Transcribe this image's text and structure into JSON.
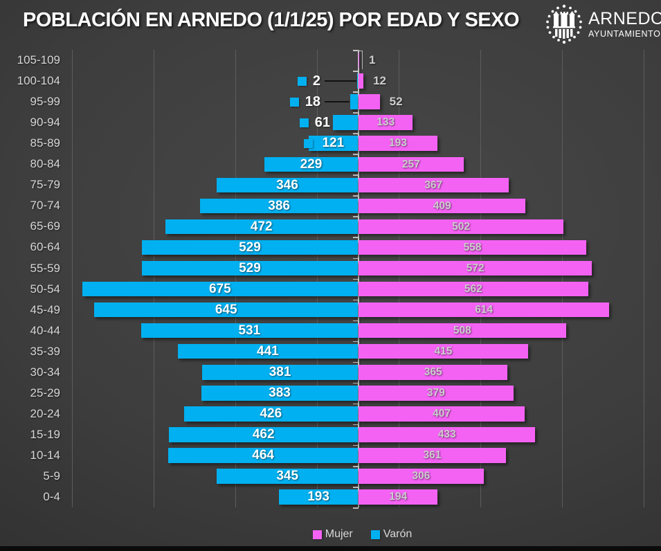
{
  "title": "POBLACIÓN EN ARNEDO (1/1/25) POR EDAD Y SEXO",
  "logo": {
    "name": "ARNEDO",
    "subtitle": "AYUNTAMIENTO"
  },
  "legend": [
    {
      "label": "Mujer",
      "color": "#f462f4"
    },
    {
      "label": "Varón",
      "color": "#00b0f0"
    }
  ],
  "colors": {
    "varon": "#00b0f0",
    "mujer": "#f462f4",
    "background": "#3d3d3d",
    "gridline": "#5d5d5d",
    "axis": "#c9c9c9",
    "varon_label": "#ffffff",
    "mujer_label": "#cdcdcd"
  },
  "chart_data": {
    "type": "bar",
    "subtype": "population-pyramid",
    "title": "POBLACIÓN EN ARNEDO (1/1/25) POR EDAD Y SEXO",
    "categories": [
      "105-109",
      "100-104",
      "95-99",
      "90-94",
      "85-89",
      "80-84",
      "75-79",
      "70-74",
      "65-69",
      "60-64",
      "55-59",
      "50-54",
      "45-49",
      "40-44",
      "35-39",
      "30-34",
      "25-29",
      "20-24",
      "15-19",
      "10-14",
      "5-9",
      "0-4"
    ],
    "series": [
      {
        "name": "Varón",
        "side": "left",
        "color": "#00b0f0",
        "values": [
          null,
          2,
          18,
          61,
          121,
          229,
          346,
          386,
          472,
          529,
          529,
          675,
          645,
          531,
          441,
          381,
          383,
          426,
          462,
          464,
          345,
          193
        ],
        "label_style": [
          null,
          "outside-key-leader",
          "outside-key-leader",
          "outside-key",
          "inside-key",
          "inside",
          "inside",
          "inside",
          "inside",
          "inside",
          "inside",
          "inside",
          "inside",
          "inside",
          "inside",
          "inside",
          "inside",
          "inside",
          "inside",
          "inside",
          "inside",
          "inside"
        ]
      },
      {
        "name": "Mujer",
        "side": "right",
        "color": "#f462f4",
        "values": [
          1,
          12,
          52,
          133,
          193,
          257,
          367,
          409,
          502,
          558,
          572,
          562,
          614,
          508,
          415,
          365,
          379,
          407,
          433,
          361,
          306,
          194
        ],
        "label_style": [
          "outside-leader",
          "outside",
          "outside",
          "inside",
          "inside",
          "inside",
          "inside",
          "inside",
          "inside",
          "inside",
          "inside",
          "inside",
          "inside",
          "inside",
          "inside",
          "inside",
          "inside",
          "inside",
          "inside",
          "inside",
          "inside",
          "inside"
        ]
      }
    ],
    "axis": {
      "center_value": 0,
      "gridline_values": [
        100,
        300,
        500,
        700
      ],
      "gridlines_visible": true,
      "unit": "personas"
    },
    "legend_position": "bottom"
  }
}
